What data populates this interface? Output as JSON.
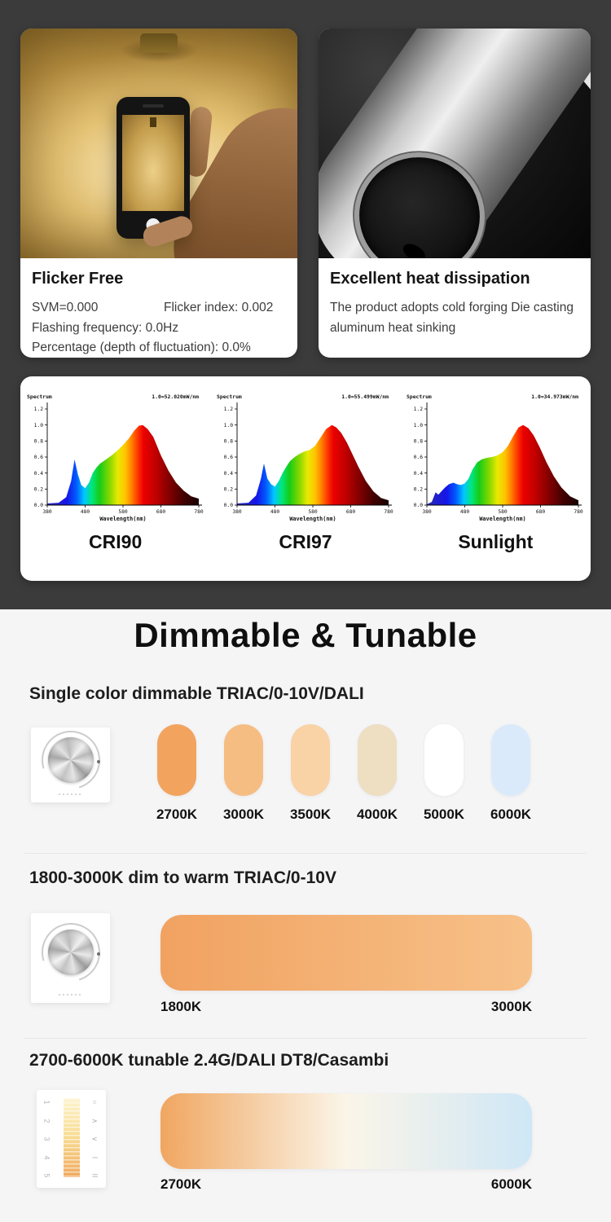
{
  "theme": {
    "bg_dark": "#3b3b3b",
    "bg_light": "#f5f5f6",
    "card_bg": "#ffffff",
    "heading_color": "#0f0f0f",
    "body_text_color": "#3d3d3d"
  },
  "flicker_card": {
    "title": "Flicker Free",
    "spec_svm": "SVM=0.000",
    "spec_flicker_index": "Flicker index: 0.002",
    "spec_frequency": "Flashing frequency: 0.0Hz",
    "spec_percentage": "Percentage (depth of fluctuation): 0.0%"
  },
  "heat_card": {
    "title": "Excellent heat dissipation",
    "desc": "The product adopts cold forging Die casting aluminum heat sinking"
  },
  "chart_data": [
    {
      "type": "area",
      "title": "CRI90",
      "corner_label": "Spectrum",
      "scale_label": "1.0=52.020mW/nm",
      "xlabel": "Wavelength(nm)",
      "ylim": [
        0,
        1.2
      ],
      "xticks": [
        380,
        480,
        580,
        680,
        780
      ],
      "yticks": [
        1.2,
        1.0,
        0.8,
        0.6,
        0.4,
        0.2,
        0.0
      ],
      "x": [
        380,
        410,
        430,
        443,
        452,
        461,
        470,
        480,
        490,
        500,
        510,
        520,
        535,
        550,
        565,
        580,
        595,
        610,
        622,
        632,
        645,
        660,
        680,
        700,
        720,
        740,
        760,
        780
      ],
      "values": [
        0.02,
        0.03,
        0.1,
        0.3,
        0.57,
        0.38,
        0.25,
        0.21,
        0.28,
        0.4,
        0.47,
        0.52,
        0.57,
        0.62,
        0.68,
        0.75,
        0.83,
        0.93,
        0.99,
        1.0,
        0.95,
        0.85,
        0.62,
        0.43,
        0.28,
        0.18,
        0.11,
        0.08
      ]
    },
    {
      "type": "area",
      "title": "CRI97",
      "corner_label": "Spectrum",
      "scale_label": "1.0=55.499mW/nm",
      "xlabel": "Wavelength(nm)",
      "ylim": [
        0,
        1.2
      ],
      "xticks": [
        380,
        480,
        580,
        680,
        780
      ],
      "yticks": [
        1.2,
        1.0,
        0.8,
        0.6,
        0.4,
        0.2,
        0.0
      ],
      "x": [
        380,
        410,
        430,
        443,
        451,
        460,
        470,
        480,
        490,
        500,
        510,
        520,
        532,
        545,
        558,
        572,
        586,
        600,
        615,
        630,
        642,
        655,
        670,
        685,
        700,
        720,
        740,
        760,
        780
      ],
      "values": [
        0.02,
        0.03,
        0.12,
        0.33,
        0.52,
        0.33,
        0.26,
        0.23,
        0.3,
        0.4,
        0.48,
        0.55,
        0.6,
        0.64,
        0.67,
        0.69,
        0.74,
        0.84,
        0.95,
        1.0,
        0.97,
        0.9,
        0.78,
        0.63,
        0.48,
        0.3,
        0.17,
        0.09,
        0.06
      ]
    },
    {
      "type": "area",
      "title": "Sunlight",
      "corner_label": "Spectrum",
      "scale_label": "1.0=34.973mW/nm",
      "xlabel": "Wavelength(nm)",
      "ylim": [
        0,
        1.2
      ],
      "xticks": [
        380,
        480,
        580,
        680,
        780
      ],
      "yticks": [
        1.2,
        1.0,
        0.8,
        0.6,
        0.4,
        0.2,
        0.0
      ],
      "x": [
        380,
        393,
        403,
        410,
        418,
        428,
        438,
        450,
        460,
        470,
        480,
        490,
        500,
        512,
        524,
        538,
        552,
        566,
        580,
        594,
        608,
        622,
        634,
        648,
        662,
        678,
        695,
        715,
        735,
        758,
        780
      ],
      "values": [
        0.01,
        0.04,
        0.16,
        0.13,
        0.17,
        0.22,
        0.26,
        0.28,
        0.26,
        0.25,
        0.27,
        0.33,
        0.44,
        0.53,
        0.57,
        0.59,
        0.6,
        0.62,
        0.66,
        0.74,
        0.86,
        0.97,
        1.0,
        0.96,
        0.87,
        0.72,
        0.54,
        0.36,
        0.22,
        0.11,
        0.06
      ]
    }
  ],
  "dimmable": {
    "heading": "Dimmable & Tunable",
    "single": {
      "heading": "Single color dimmable TRIAC/0-10V/DALI",
      "swatches": [
        {
          "label": "2700K",
          "color": "#f2a45f"
        },
        {
          "label": "3000K",
          "color": "#f6bd83"
        },
        {
          "label": "3500K",
          "color": "#f9d2a6"
        },
        {
          "label": "4000K",
          "color": "#eedec2"
        },
        {
          "label": "5000K",
          "color": "#ffffff"
        },
        {
          "label": "6000K",
          "color": "#dbeafa"
        }
      ]
    },
    "dim_to_warm": {
      "heading": "1800-3000K dim to warm TRIAC/0-10V",
      "left_label": "1800K",
      "right_label": "3000K",
      "bar_colors": [
        "#f1a261",
        "#f7c189"
      ]
    },
    "tunable": {
      "heading": "2700-6000K tunable 2.4G/DALI DT8/Casambi",
      "left_label": "2700K",
      "right_label": "6000K",
      "bar_colors": [
        "#f0a660",
        "#fbf5e8",
        "#cfe7f6"
      ]
    }
  },
  "touch_panel": {
    "digits": [
      "1",
      "2",
      "3",
      "4",
      "5"
    ],
    "icons": [
      {
        "name": "power-icon",
        "glyph": "○"
      },
      {
        "name": "chevron-up-icon",
        "glyph": "∧"
      },
      {
        "name": "chevron-down-icon",
        "glyph": "∨"
      },
      {
        "name": "scene-one-icon",
        "glyph": "I"
      },
      {
        "name": "scene-two-icon",
        "glyph": "II"
      }
    ]
  }
}
